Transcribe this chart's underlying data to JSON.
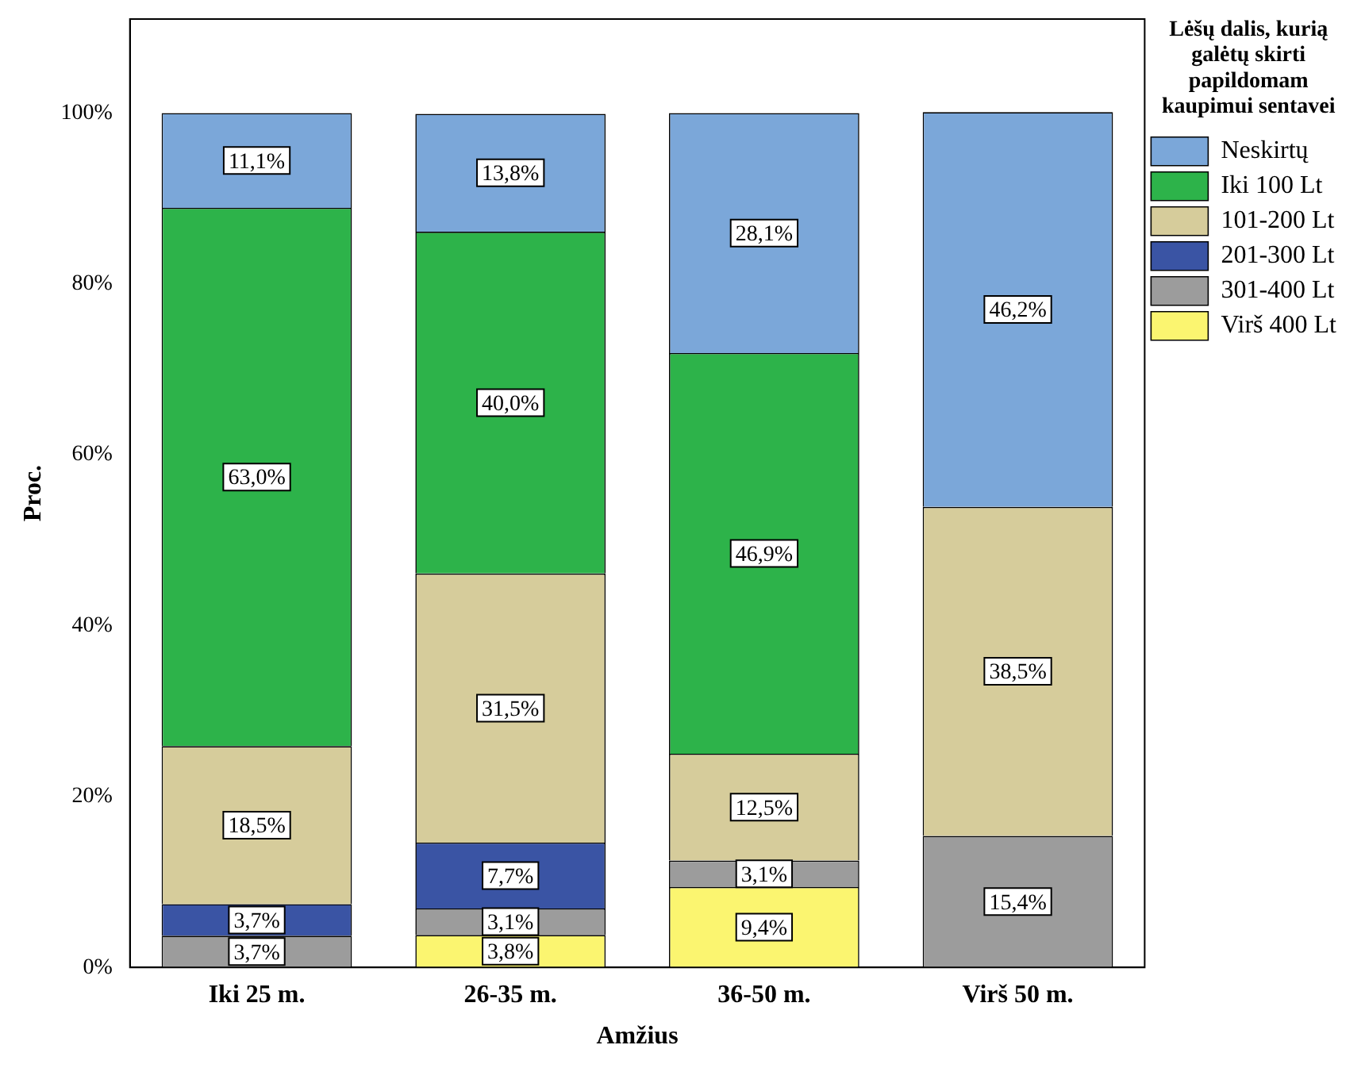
{
  "chart_data": {
    "type": "bar",
    "stacked": true,
    "xlabel": "Amžius",
    "ylabel": "Proc.",
    "legend_title": "Lėšų dalis, kurią galėtų skirti papildomam kaupimui sentavei",
    "legend": "top right",
    "grid": false,
    "categories": [
      "Iki 25 m.",
      "26-35 m.",
      "36-50 m.",
      "Virš 50 m."
    ],
    "ylim": [
      0,
      111
    ],
    "yticks": [
      {
        "value": 0,
        "label": "0%"
      },
      {
        "value": 20,
        "label": "20%"
      },
      {
        "value": 40,
        "label": "40%"
      },
      {
        "value": 60,
        "label": "60%"
      },
      {
        "value": 80,
        "label": "80%"
      },
      {
        "value": 100,
        "label": "100%"
      }
    ],
    "series": [
      {
        "name": "Virš 400 Lt",
        "color": "#fbf570",
        "values": [
          null,
          3.8,
          9.4,
          null
        ],
        "value_labels": [
          null,
          "3,8%",
          "9,4%",
          null
        ]
      },
      {
        "name": "301-400 Lt",
        "color": "#9c9c9c",
        "values": [
          3.7,
          3.1,
          3.1,
          15.4
        ],
        "value_labels": [
          "3,7%",
          "3,1%",
          "3,1%",
          "15,4%"
        ]
      },
      {
        "name": "201-300 Lt",
        "color": "#3a54a4",
        "values": [
          3.7,
          7.7,
          null,
          null
        ],
        "value_labels": [
          "3,7%",
          "7,7%",
          null,
          null
        ]
      },
      {
        "name": "101-200 Lt",
        "color": "#d6cc9b",
        "values": [
          18.5,
          31.5,
          12.5,
          38.5
        ],
        "value_labels": [
          "18,5%",
          "31,5%",
          "12,5%",
          "38,5%"
        ]
      },
      {
        "name": "Iki 100 Lt",
        "color": "#2db34a",
        "values": [
          63.0,
          40.0,
          46.9,
          null
        ],
        "value_labels": [
          "63,0%",
          "40,0%",
          "46,9%",
          null
        ]
      },
      {
        "name": "Neskirtų",
        "color": "#7ba7d9",
        "values": [
          11.1,
          13.8,
          28.1,
          46.2
        ],
        "value_labels": [
          "11,1%",
          "13,8%",
          "28,1%",
          "46,2%"
        ]
      }
    ]
  }
}
